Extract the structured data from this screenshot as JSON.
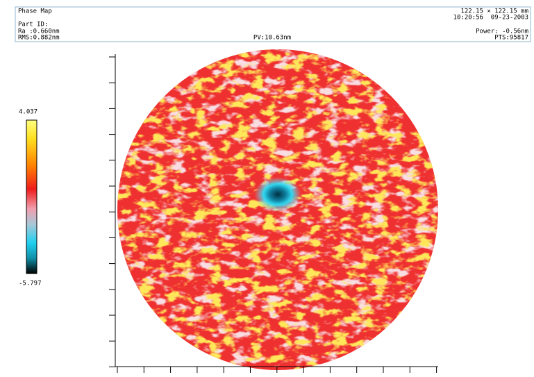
{
  "header": {
    "title": "Phase Map",
    "part_id": "Part ID:",
    "ra": "Ra :0.660nm",
    "rms": "RMS:0.882nm",
    "pv": "PV:10.63nm",
    "size": "122.15 × 122.15 mm",
    "timestamp": "10:20:56  09-23-2003",
    "power": "Power: -0.56nm",
    "pts": "PTS:95817"
  },
  "color_scale": {
    "max": 4.037,
    "min": -5.797
  }
}
